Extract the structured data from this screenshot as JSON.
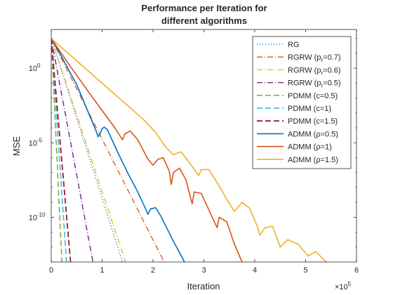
{
  "chart_data": {
    "type": "line",
    "title_lines": [
      "Performance per Iteration for",
      "different algorithms"
    ],
    "xlabel": "Iteration",
    "ylabel": "MSE",
    "x_multiplier_base": "×10",
    "x_multiplier_exp": "5",
    "xlim": [
      0,
      600000
    ],
    "ylim_log10": [
      -13,
      2.6
    ],
    "yscale": "log",
    "grid": false,
    "legend_position": "top-right",
    "x_ticks": [
      {
        "value": 0,
        "label": "0"
      },
      {
        "value": 100000,
        "label": "1"
      },
      {
        "value": 200000,
        "label": "2"
      },
      {
        "value": 300000,
        "label": "3"
      },
      {
        "value": 400000,
        "label": "4"
      },
      {
        "value": 500000,
        "label": "5"
      },
      {
        "value": 600000,
        "label": "6"
      }
    ],
    "y_ticks": [
      {
        "log10": 0,
        "base": "10",
        "exp": "0"
      },
      {
        "log10": -5,
        "base": "10",
        "exp": "-5"
      },
      {
        "log10": -10,
        "base": "10",
        "exp": "-10"
      }
    ],
    "series": [
      {
        "name": "RG",
        "label_parts": [
          "RG"
        ],
        "color": "#0072BD",
        "dash": "1,3",
        "width": 1.5,
        "points": [
          [
            0,
            2
          ],
          [
            140000,
            -13
          ]
        ]
      },
      {
        "name": "RGRW (pr=0.7)",
        "label_parts": [
          "RGRW (p",
          "r",
          "=0.7)"
        ],
        "color": "#D95319",
        "dash": "8,3,1,3",
        "width": 1.3,
        "points": [
          [
            0,
            2
          ],
          [
            222000,
            -13
          ]
        ]
      },
      {
        "name": "RGRW (pr=0.6)",
        "label_parts": [
          "RGRW (p",
          "r",
          "=0.6)"
        ],
        "color": "#EDB120",
        "dash": "8,3,1,3",
        "width": 1.3,
        "points": [
          [
            0,
            2
          ],
          [
            146000,
            -13
          ]
        ]
      },
      {
        "name": "RGRW (pr=0.5)",
        "label_parts": [
          "RGRW (p",
          "r",
          "=0.5)"
        ],
        "color": "#7E2F8E",
        "dash": "8,3,1,3",
        "width": 1.5,
        "points": [
          [
            0,
            2
          ],
          [
            82000,
            -13
          ]
        ]
      },
      {
        "name": "PDMM (c=0.5)",
        "label_parts": [
          "PDMM (c=0.5)"
        ],
        "color": "#77AC30",
        "dash": "8,4",
        "width": 1.5,
        "points": [
          [
            0,
            2
          ],
          [
            21000,
            -13
          ]
        ]
      },
      {
        "name": "PDMM (c=1)",
        "label_parts": [
          "PDMM (c=1)"
        ],
        "color": "#4DBEEE",
        "dash": "8,4",
        "width": 1.8,
        "points": [
          [
            0,
            2
          ],
          [
            30000,
            -13
          ]
        ]
      },
      {
        "name": "PDMM (c=1.5)",
        "label_parts": [
          "PDMM (c=1.5)"
        ],
        "color": "#A2142F",
        "dash": "8,4",
        "width": 1.8,
        "points": [
          [
            0,
            2
          ],
          [
            38000,
            -13
          ]
        ]
      },
      {
        "name": "ADMM (ρ=0.5)",
        "label_parts": [
          "ADMM (",
          "ρ",
          "=0.5)"
        ],
        "color": "#0072BD",
        "dash": "",
        "width": 1.6,
        "points": [
          [
            0,
            2
          ],
          [
            20000,
            0.8
          ],
          [
            50000,
            -1.1
          ],
          [
            88000,
            -4.2
          ],
          [
            92000,
            -4.6
          ],
          [
            96000,
            -4.4
          ],
          [
            100000,
            -4.05
          ],
          [
            104000,
            -3.95
          ],
          [
            110000,
            -4.1
          ],
          [
            130000,
            -5.6
          ],
          [
            150000,
            -7.0
          ],
          [
            170000,
            -8.3
          ],
          [
            185000,
            -9.4
          ],
          [
            190000,
            -9.8
          ],
          [
            195000,
            -9.45
          ],
          [
            205000,
            -9.35
          ],
          [
            215000,
            -9.9
          ],
          [
            240000,
            -11.6
          ],
          [
            262000,
            -13
          ]
        ]
      },
      {
        "name": "ADMM (ρ=1)",
        "label_parts": [
          "ADMM (",
          "ρ",
          "=1)"
        ],
        "color": "#D95319",
        "dash": "",
        "width": 1.6,
        "points": [
          [
            0,
            2
          ],
          [
            40000,
            0
          ],
          [
            80000,
            -1.9
          ],
          [
            125000,
            -4.0
          ],
          [
            140000,
            -4.8
          ],
          [
            145000,
            -4.4
          ],
          [
            155000,
            -4.2
          ],
          [
            170000,
            -4.8
          ],
          [
            190000,
            -6.1
          ],
          [
            200000,
            -6.5
          ],
          [
            210000,
            -6.1
          ],
          [
            220000,
            -6.0
          ],
          [
            232000,
            -6.9
          ],
          [
            236000,
            -7.8
          ],
          [
            240000,
            -7.0
          ],
          [
            252000,
            -6.7
          ],
          [
            265000,
            -7.5
          ],
          [
            277000,
            -9.1
          ],
          [
            281000,
            -8.3
          ],
          [
            295000,
            -8.4
          ],
          [
            315000,
            -9.9
          ],
          [
            326000,
            -10.7
          ],
          [
            330000,
            -10.0
          ],
          [
            345000,
            -10.3
          ],
          [
            360000,
            -11.8
          ],
          [
            375000,
            -13
          ]
        ]
      },
      {
        "name": "ADMM (ρ=1.5)",
        "label_parts": [
          "ADMM (",
          "ρ",
          "=1.5)"
        ],
        "color": "#EDB120",
        "dash": "",
        "width": 1.6,
        "points": [
          [
            0,
            2
          ],
          [
            50000,
            0.5
          ],
          [
            100000,
            -1.0
          ],
          [
            150000,
            -2.5
          ],
          [
            180000,
            -3.4
          ],
          [
            205000,
            -4.3
          ],
          [
            225000,
            -5.3
          ],
          [
            240000,
            -5.8
          ],
          [
            255000,
            -5.6
          ],
          [
            275000,
            -6.5
          ],
          [
            290000,
            -7.2
          ],
          [
            295000,
            -6.8
          ],
          [
            310000,
            -6.8
          ],
          [
            330000,
            -7.9
          ],
          [
            345000,
            -8.8
          ],
          [
            360000,
            -9.6
          ],
          [
            375000,
            -9.0
          ],
          [
            390000,
            -9.4
          ],
          [
            405000,
            -10.6
          ],
          [
            410000,
            -11.2
          ],
          [
            420000,
            -10.7
          ],
          [
            435000,
            -10.6
          ],
          [
            450000,
            -12.0
          ],
          [
            465000,
            -11.5
          ],
          [
            485000,
            -11.8
          ],
          [
            505000,
            -12.6
          ],
          [
            520000,
            -12.3
          ],
          [
            540000,
            -13
          ]
        ]
      }
    ]
  }
}
